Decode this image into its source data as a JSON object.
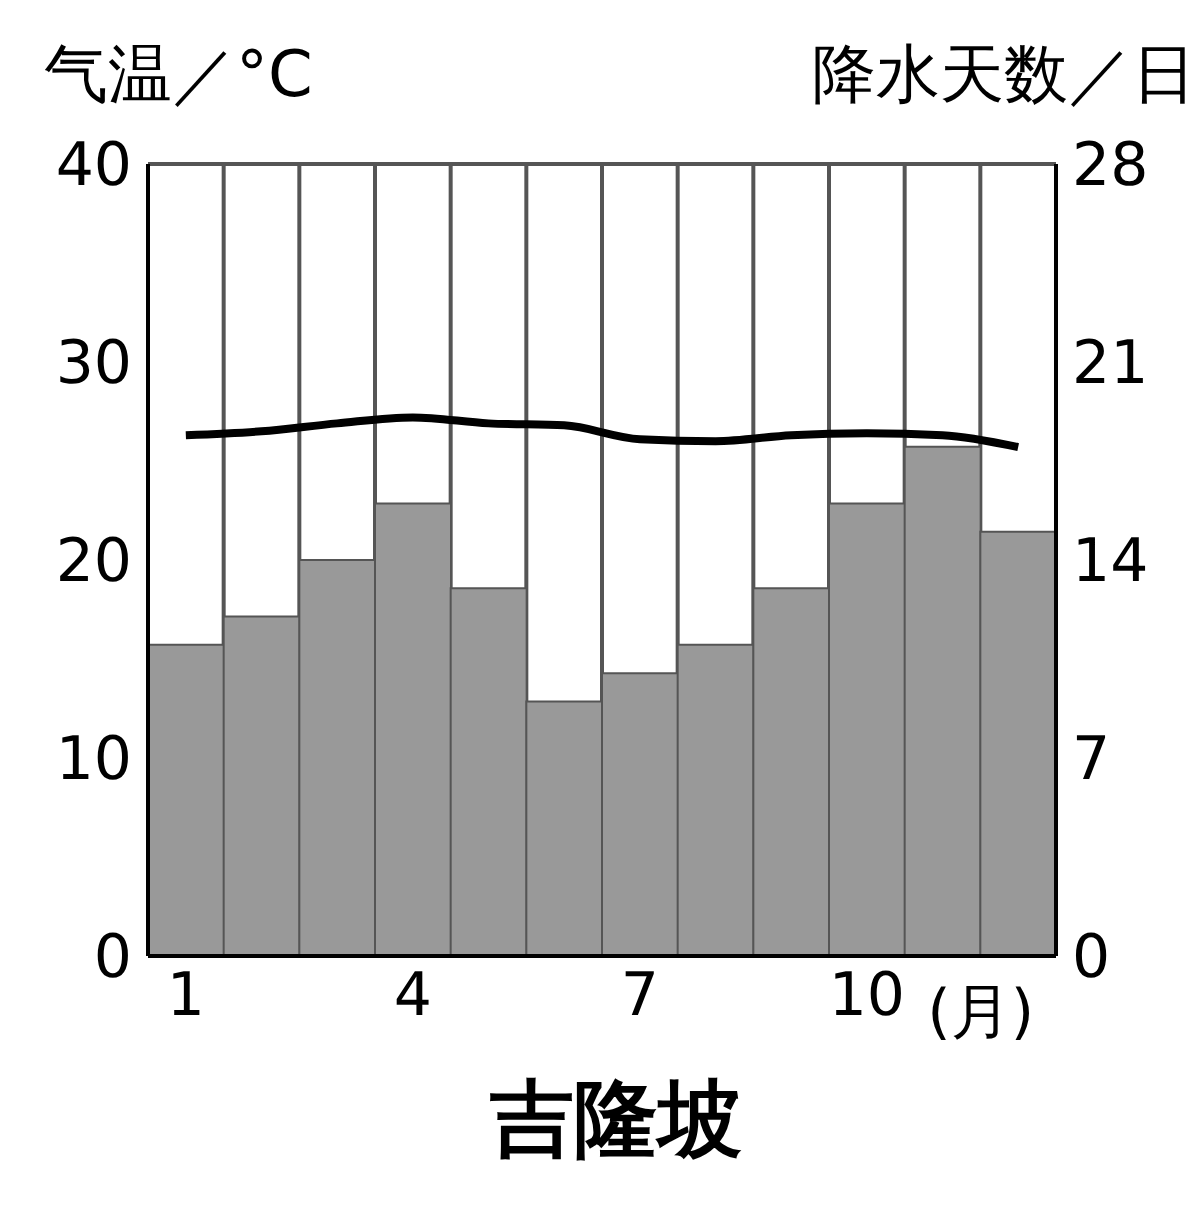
{
  "chart_data": {
    "type": "bar",
    "title": "吉隆坡",
    "xlabel": "(月)",
    "ylabel": "气温／°C",
    "y2label": "降水天数／日",
    "categories": [
      "1",
      null,
      null,
      "4",
      null,
      null,
      "7",
      null,
      null,
      "10",
      null,
      null
    ],
    "series": [
      {
        "axis": "y2",
        "color": "#999999",
        "values": [
          11,
          12,
          14,
          16,
          13,
          9,
          10,
          11,
          13,
          16,
          18,
          15
        ]
      },
      {
        "type": "line",
        "axis": "y",
        "color": "#000000",
        "values": [
          26.3,
          26.5,
          26.9,
          27.2,
          26.9,
          26.8,
          26.1,
          26.0,
          26.3,
          26.4,
          26.3,
          25.7
        ]
      }
    ],
    "ylim": [
      0,
      40
    ],
    "yticks": [
      0,
      10,
      20,
      30,
      40
    ],
    "y2lim": [
      0,
      28
    ],
    "y2ticks": [
      0,
      7,
      14,
      21,
      28
    ],
    "grid": true,
    "marker": "none",
    "line_style": "solid"
  }
}
